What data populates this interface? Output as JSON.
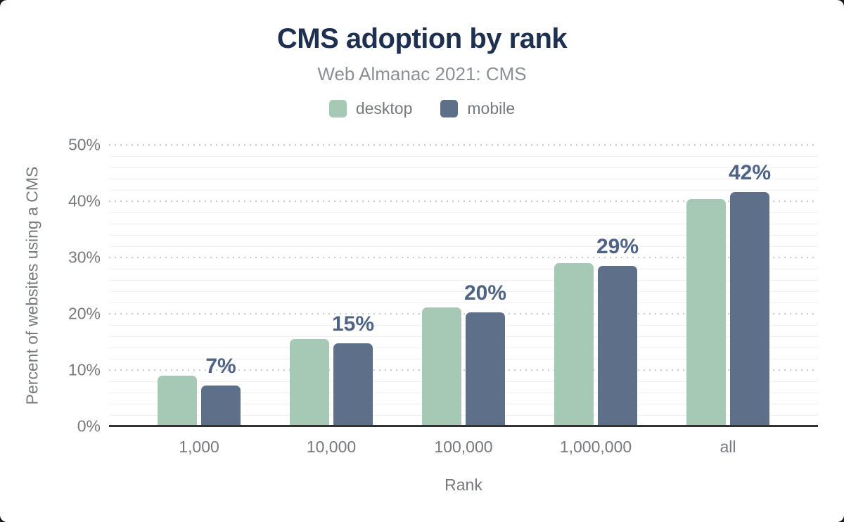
{
  "chart_data": {
    "type": "bar",
    "title": "CMS adoption by rank",
    "subtitle": "Web Almanac 2021: CMS",
    "categories": [
      "1,000",
      "10,000",
      "100,000",
      "1,000,000",
      "all"
    ],
    "series": [
      {
        "name": "desktop",
        "color": "#a6c9b6",
        "values": [
          9.0,
          15.5,
          21.1,
          29.0,
          40.4
        ]
      },
      {
        "name": "mobile",
        "color": "#5e7089",
        "values": [
          7.3,
          14.8,
          20.3,
          28.5,
          41.6
        ]
      }
    ],
    "bar_labels": {
      "labeled_series": "mobile",
      "labels": [
        "7%",
        "15%",
        "20%",
        "29%",
        "42%"
      ]
    },
    "xlabel": "Rank",
    "ylabel": "Percent of websites using a CMS",
    "ylim": [
      0,
      50
    ],
    "yticks": [
      "0%",
      "10%",
      "20%",
      "30%",
      "40%",
      "50%"
    ],
    "grid": {
      "major_step_pct": 10,
      "minor_step_pct": 2,
      "legend_position": "top"
    },
    "colors": {
      "title": "#1e3050",
      "subtitle": "#8b8f96",
      "axis_text": "#76797e",
      "bar_label": "#4e6385",
      "major_grid": "#c9c9c9",
      "minor_grid": "#f2f2f2",
      "axis_line": "#333333"
    }
  }
}
